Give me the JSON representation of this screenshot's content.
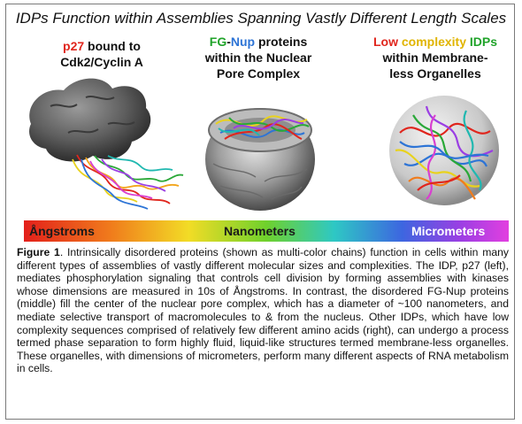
{
  "title": "IDPs Function within Assemblies Spanning Vastly Different Length Scales",
  "panels": [
    {
      "label_parts": [
        "p27",
        " bound to",
        "Cdk2/Cyclin A"
      ]
    },
    {
      "label_parts": [
        "FG",
        "-",
        "Nup",
        " proteins",
        "within the Nuclear",
        "Pore Complex"
      ]
    },
    {
      "label_parts": [
        "Low",
        " ",
        "complexity",
        " ",
        "IDPs",
        "within Membrane-",
        "less Organelles"
      ]
    }
  ],
  "scale": {
    "left": "Ångstroms",
    "middle": "Nanometers",
    "right": "Micrometers"
  },
  "caption": {
    "figure_label": "Figure 1",
    "text": ". Intrinsically disordered proteins (shown as multi-color chains) function in cells within many different types of assemblies of vastly different molecular sizes and complexities. The IDP, p27 (left), mediates phosphorylation signaling that controls cell division by forming assemblies with kinases whose dimensions are measured in 10s of Ångstroms. In contrast, the disordered FG-Nup proteins (middle) fill the center of the nuclear pore complex, which has a diameter of ~100 nanometers, and mediate selective transport of macromolecules to & from the nucleus. Other IDPs, which have low complexity sequences comprised of relatively few different amino acids (right), can undergo a process termed phase separation to form highly fluid, liquid-like structures termed membrane-less organelles. These organelles, with dimensions of micrometers, perform many different aspects of RNA metabolism in cells."
  },
  "colors": {
    "red": "#e0261d",
    "green": "#20a32a",
    "blue": "#2d74d6",
    "yellow": "#e0b400"
  }
}
